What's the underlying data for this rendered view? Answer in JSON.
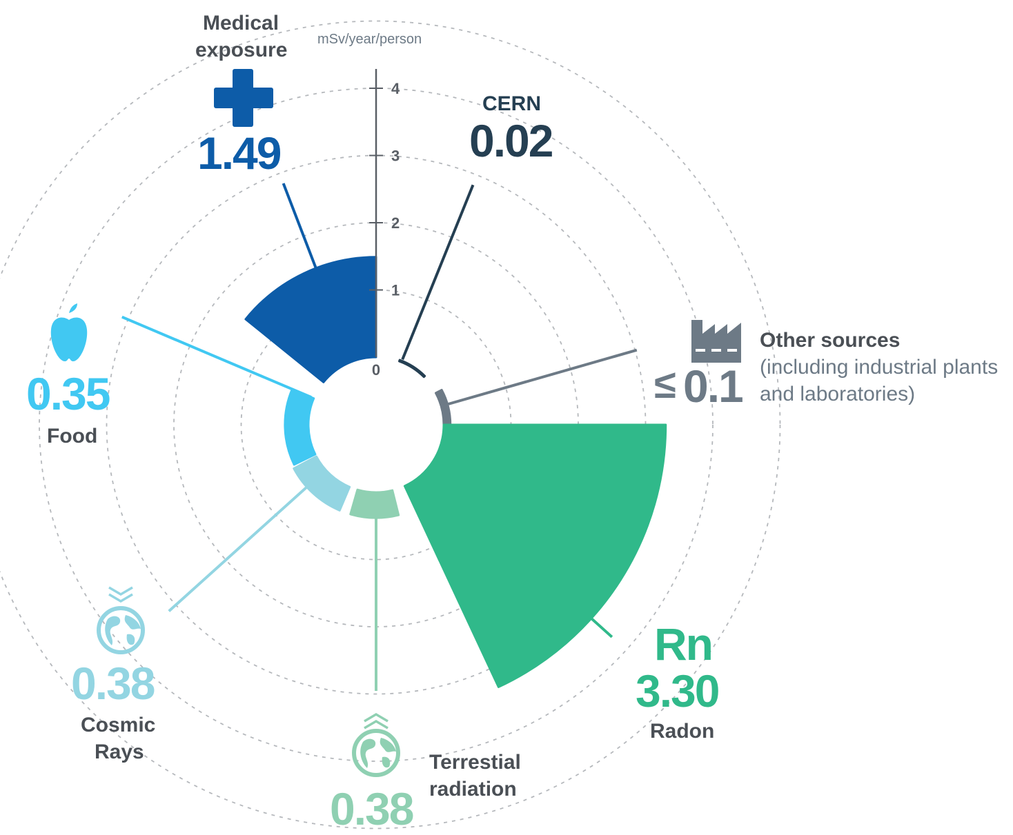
{
  "chart_data": {
    "type": "polar-area",
    "unit_label": "mSv/year/person",
    "radial_ticks": [
      "0",
      "1",
      "2",
      "3",
      "4"
    ],
    "rmax": 4,
    "categories": [
      {
        "key": "medical",
        "name_lines": [
          "Medical",
          "exposure"
        ],
        "value": 1.49,
        "value_label": "1.49",
        "color": "#0d5ca8",
        "icon": "medical-cross-icon"
      },
      {
        "key": "cern",
        "name_lines": [
          "CERN"
        ],
        "value": 0.02,
        "value_label": "0.02",
        "color": "#253f52",
        "icon": ""
      },
      {
        "key": "other",
        "name_lines": [
          "Other sources"
        ],
        "sub_lines": [
          "(including industrial plants",
          "and laboratories)"
        ],
        "value": 0.1,
        "value_prefix": "≤",
        "value_label": "0.1",
        "color": "#6d7a86",
        "icon": "factory-icon"
      },
      {
        "key": "radon",
        "name_lines": [
          "Radon"
        ],
        "symbol": "Rn",
        "value": 3.3,
        "value_label": "3.30",
        "color": "#30b98a",
        "icon": ""
      },
      {
        "key": "terrestrial",
        "name_lines": [
          "Terrestial",
          "radiation"
        ],
        "value": 0.38,
        "value_label": "0.38",
        "color": "#8fd0b2",
        "icon": "globe-up-arrows-icon"
      },
      {
        "key": "cosmic",
        "name_lines": [
          "Cosmic",
          "Rays"
        ],
        "value": 0.38,
        "value_label": "0.38",
        "color": "#93d5e2",
        "icon": "globe-down-arrows-icon"
      },
      {
        "key": "food",
        "name_lines": [
          "Food"
        ],
        "value": 0.35,
        "value_label": "0.35",
        "color": "#41c8f2",
        "icon": "apple-icon"
      }
    ]
  }
}
